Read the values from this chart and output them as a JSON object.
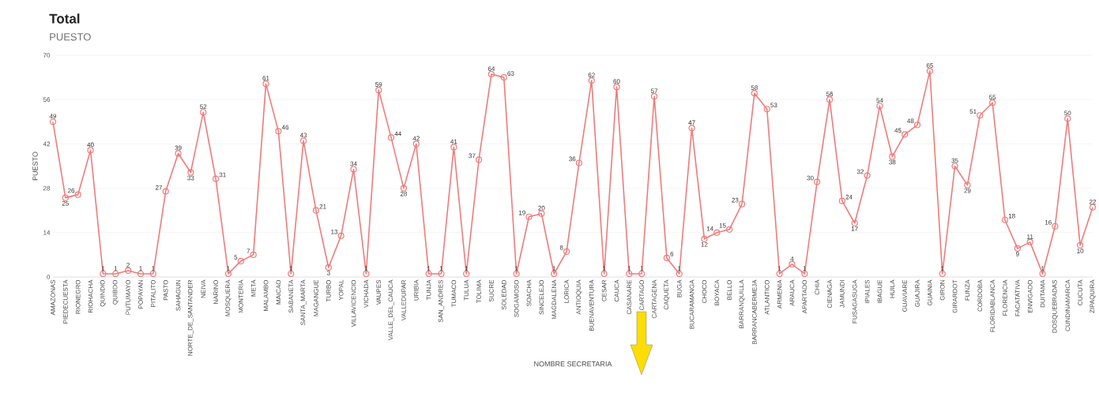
{
  "chart_data": {
    "type": "line",
    "title": "Total",
    "subtitle": "PUESTO",
    "xlabel": "NOMBRE SECRETARIA",
    "ylabel": "PUESTO",
    "categories": [
      "AMAZONAS",
      "PIEDECUESTA",
      "RIONEGRO",
      "RIOHACHA",
      "QUINDIO",
      "QUIBDO",
      "PUTUMAYO",
      "POPAYAN",
      "PITALITO",
      "PASTO",
      "SAHAGUN",
      "NORTE_DE_SANTANDER",
      "NEIVA",
      "NARINO",
      "MOSQUERA",
      "MONTERIA",
      "META",
      "MALAMBO",
      "MAICAO",
      "SABANETA",
      "SANTA_MARTA",
      "MAGANGUE",
      "TURBO",
      "YOPAL",
      "VILLAVICENCIO",
      "VICHADA",
      "VAUPES",
      "VALLE_DEL_CAUCA",
      "VALLEDUPAR",
      "URIBIA",
      "TUNJA",
      "SAN_ANDRES",
      "TUMACO",
      "TULUA",
      "TOLIMA",
      "SUCRE",
      "SOLEDAD",
      "SOGAMOSO",
      "SOACHA",
      "SINCELEJO",
      "MAGDALENA",
      "LORICA",
      "ANTIOQUIA",
      "BUENAVENTURA",
      "CESAR",
      "CAUCA",
      "CASANARE",
      "CARTAGO",
      "CARTAGENA",
      "CAQUETA",
      "BUGA",
      "BUCARAMANGA",
      "CHOCO",
      "BOYACA",
      "BELLO",
      "BARRANQUILLA",
      "BARRANCABERMEJA",
      "ATLANTICO",
      "ARMENIA",
      "ARAUCA",
      "APARTADO",
      "CHIA",
      "CIENAGA",
      "JAMUNDI",
      "FUSAGASUGA",
      "IPIALES",
      "IBAGUE",
      "HUILA",
      "GUAVIARE",
      "GUAJIRA",
      "GUAINIA",
      "GIRON",
      "GIRARDOT",
      "FUNZA",
      "CORDOBA",
      "FLORIDABLANCA",
      "FLORENCIA",
      "FACATATIVA",
      "ENVIGADO",
      "DUITAMA",
      "DOSQUEBRADAS",
      "CUNDINAMARCA",
      "CUCUTA",
      "ZIPAQUIRA"
    ],
    "values": [
      49,
      25,
      26,
      40,
      1,
      1,
      2,
      1,
      1,
      27,
      39,
      33,
      52,
      31,
      1,
      5,
      7,
      61,
      46,
      1,
      43,
      21,
      3,
      13,
      34,
      1,
      59,
      44,
      28,
      42,
      1,
      1,
      41,
      1,
      37,
      64,
      63,
      1,
      19,
      20,
      1,
      8,
      36,
      62,
      1,
      60,
      1,
      1,
      57,
      6,
      1,
      47,
      12,
      14,
      15,
      23,
      58,
      53,
      1,
      4,
      1,
      30,
      56,
      24,
      17,
      32,
      54,
      38,
      45,
      48,
      65,
      1,
      35,
      29,
      51,
      55,
      18,
      9,
      11,
      1,
      16,
      50,
      10,
      22
    ],
    "color": "#f07b7b",
    "marker": "circle",
    "line_style": "solid",
    "grid": "y",
    "data_labels": true,
    "ylim": [
      0,
      70
    ],
    "yticks": [
      0,
      14,
      28,
      42,
      56,
      70
    ]
  }
}
